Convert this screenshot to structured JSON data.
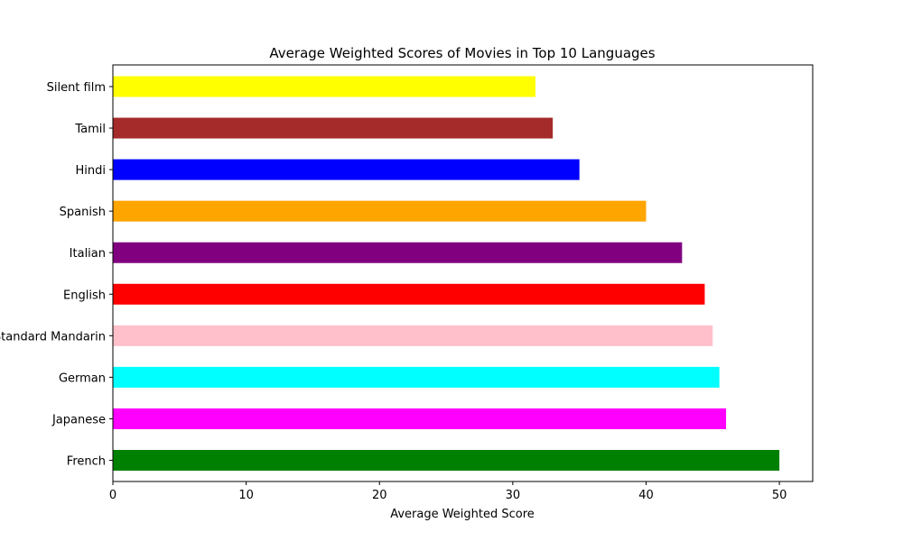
{
  "chart_data": {
    "type": "bar",
    "orientation": "horizontal",
    "title": "Average Weighted Scores of Movies in Top 10 Languages",
    "xlabel": "Average Weighted Score",
    "ylabel": "",
    "categories": [
      "French",
      "Japanese",
      "German",
      "Standard Mandarin",
      "English",
      "Italian",
      "Spanish",
      "Hindi",
      "Tamil",
      "Silent film"
    ],
    "values": [
      50.0,
      46.0,
      45.5,
      45.0,
      44.4,
      42.7,
      40.0,
      35.0,
      33.0,
      31.7
    ],
    "colors": [
      "#008000",
      "#ff00ff",
      "#00ffff",
      "#ffc0cb",
      "#ff0000",
      "#800080",
      "#ffa500",
      "#0000ff",
      "#a52a2a",
      "#ffff00"
    ],
    "xlim": [
      0,
      52.5
    ],
    "xticks": [
      0,
      10,
      20,
      30,
      40,
      50
    ],
    "grid": false,
    "legend": "none"
  }
}
